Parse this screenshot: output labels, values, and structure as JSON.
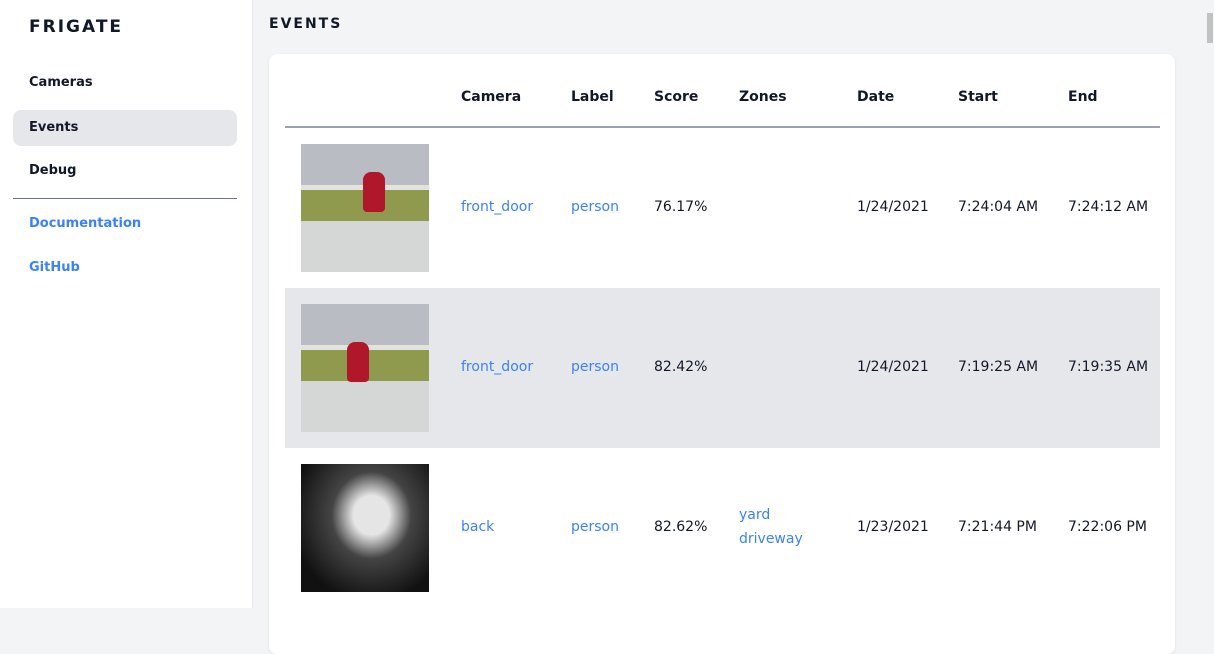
{
  "sidebar": {
    "brand": "FRIGATE",
    "items": [
      {
        "label": "Cameras"
      },
      {
        "label": "Events",
        "active": true
      },
      {
        "label": "Debug"
      }
    ],
    "links": [
      {
        "label": "Documentation"
      },
      {
        "label": "GitHub"
      }
    ]
  },
  "page": {
    "title": "EVENTS"
  },
  "table": {
    "headers": [
      "Camera",
      "Label",
      "Score",
      "Zones",
      "Date",
      "Start",
      "End"
    ],
    "rows": [
      {
        "camera": "front_door",
        "label": "person",
        "score": "76.17%",
        "zones": [
          "",
          ""
        ],
        "date": "1/24/2021",
        "start": "7:24:04 AM",
        "end": "7:24:12 AM"
      },
      {
        "camera": "front_door",
        "label": "person",
        "score": "82.42%",
        "zones": [
          "",
          ""
        ],
        "date": "1/24/2021",
        "start": "7:19:25 AM",
        "end": "7:19:35 AM"
      },
      {
        "camera": "back",
        "label": "person",
        "score": "82.62%",
        "zones": [
          "yard",
          "driveway"
        ],
        "date": "1/23/2021",
        "start": "7:21:44 PM",
        "end": "7:22:06 PM"
      }
    ]
  },
  "colors": {
    "link": "#3b82f6",
    "active_bg": "#e5e7eb"
  }
}
